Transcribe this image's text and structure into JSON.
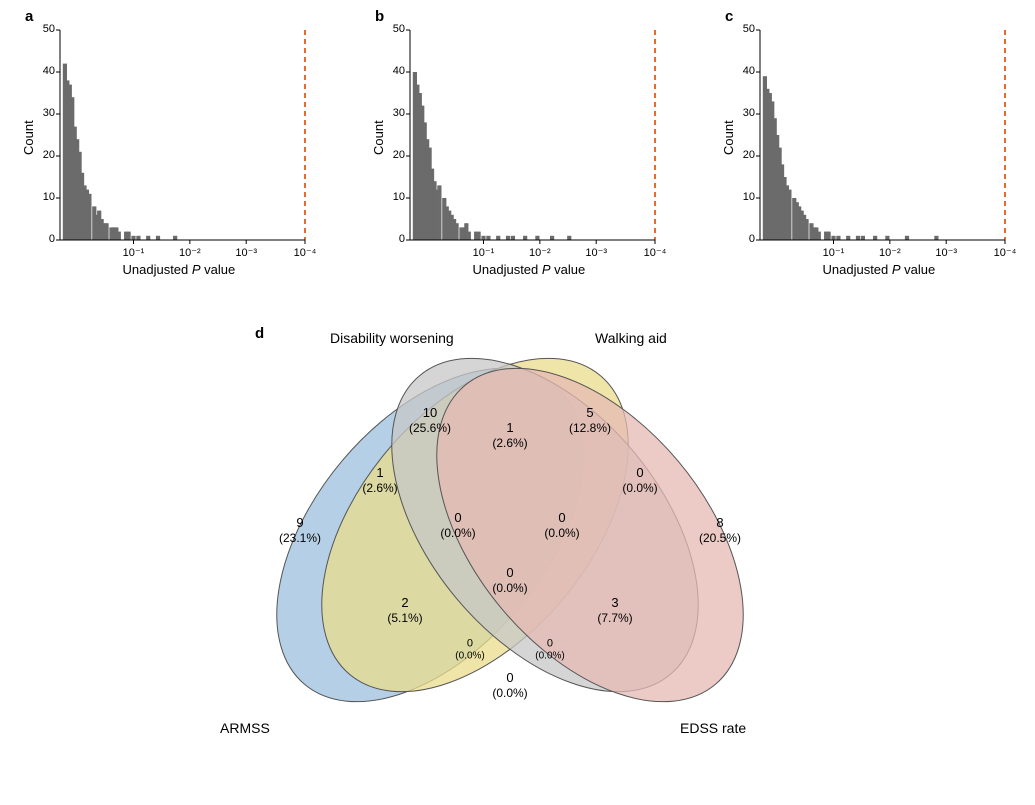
{
  "panels": {
    "a": {
      "label": "a"
    },
    "b": {
      "label": "b"
    },
    "c": {
      "label": "c"
    },
    "d": {
      "label": "d"
    }
  },
  "histograms": {
    "ylabel": "Count",
    "xlabel_prefix": "Unadjusted ",
    "xlabel_italic": "P",
    "xlabel_suffix": " value",
    "ylim": [
      0,
      50
    ],
    "yticks": [
      0,
      10,
      20,
      30,
      40,
      50
    ],
    "xticks": [
      "10⁻¹",
      "10⁻²",
      "10⁻³",
      "10⁻⁴"
    ],
    "xtick_positions": [
      0.3,
      0.53,
      0.76,
      1.0
    ],
    "bar_color": "#6b6b6b",
    "axis_color": "#000000",
    "threshold_color": "#e86a2e",
    "threshold_dash": "5,4",
    "threshold_x": 1.0,
    "background_color": "#ffffff",
    "a": {
      "bars": [
        42,
        38,
        37,
        34,
        27,
        24,
        21,
        16,
        13,
        12,
        11,
        8,
        6,
        7,
        5,
        4,
        4,
        3,
        3,
        3,
        2,
        2,
        2,
        1,
        1,
        1,
        1,
        0,
        1,
        0,
        0,
        0,
        0,
        0,
        0,
        0,
        0,
        0,
        0,
        0,
        0,
        0,
        0
      ],
      "bar_positions": [
        0.02,
        0.03,
        0.04,
        0.05,
        0.06,
        0.07,
        0.08,
        0.09,
        0.1,
        0.11,
        0.12,
        0.14,
        0.15,
        0.16,
        0.17,
        0.18,
        0.19,
        0.21,
        0.22,
        0.23,
        0.24,
        0.27,
        0.28,
        0.3,
        0.32,
        0.36,
        0.4,
        0.42,
        0.47,
        0.5,
        0.52,
        0.55,
        0.58,
        0.6,
        0.62,
        0.65,
        0.68,
        0.7,
        0.72,
        0.75,
        0.78,
        0.82,
        0.88
      ]
    },
    "b": {
      "bars": [
        40,
        37,
        35,
        32,
        28,
        24,
        22,
        17,
        14,
        12,
        13,
        10,
        8,
        7,
        6,
        5,
        4,
        3,
        3,
        4,
        2,
        2,
        2,
        1,
        1,
        1,
        1,
        1,
        1,
        0,
        1,
        0,
        1,
        0,
        0,
        1,
        0,
        0,
        0,
        0,
        0,
        0,
        0
      ],
      "bar_positions": [
        0.02,
        0.03,
        0.04,
        0.05,
        0.06,
        0.07,
        0.08,
        0.09,
        0.1,
        0.11,
        0.12,
        0.14,
        0.15,
        0.16,
        0.17,
        0.18,
        0.19,
        0.21,
        0.22,
        0.23,
        0.24,
        0.27,
        0.28,
        0.3,
        0.32,
        0.36,
        0.4,
        0.42,
        0.47,
        0.5,
        0.52,
        0.55,
        0.58,
        0.6,
        0.62,
        0.65,
        0.68,
        0.7,
        0.72,
        0.75,
        0.78,
        0.82,
        0.88
      ]
    },
    "c": {
      "bars": [
        39,
        36,
        35,
        33,
        29,
        25,
        22,
        18,
        15,
        13,
        12,
        10,
        9,
        8,
        7,
        6,
        5,
        4,
        3,
        3,
        2,
        2,
        2,
        1,
        1,
        1,
        1,
        1,
        1,
        0,
        1,
        0,
        0,
        1,
        0,
        0,
        0,
        0,
        1,
        0,
        0,
        0,
        0
      ],
      "bar_positions": [
        0.02,
        0.03,
        0.04,
        0.05,
        0.06,
        0.07,
        0.08,
        0.09,
        0.1,
        0.11,
        0.12,
        0.14,
        0.15,
        0.16,
        0.17,
        0.18,
        0.19,
        0.21,
        0.22,
        0.23,
        0.24,
        0.27,
        0.28,
        0.3,
        0.32,
        0.36,
        0.4,
        0.42,
        0.47,
        0.5,
        0.52,
        0.55,
        0.58,
        0.6,
        0.62,
        0.65,
        0.68,
        0.7,
        0.72,
        0.75,
        0.78,
        0.82,
        0.88
      ]
    }
  },
  "venn": {
    "titles": {
      "disability": "Disability worsening",
      "walking": "Walking aid",
      "armss": "ARMSS",
      "edss": "EDSS rate"
    },
    "colors": {
      "armss": "#9cc0de",
      "disability": "#e9dc8c",
      "walking": "#c7c7c7",
      "edss": "#e6b9b3",
      "stroke": "#555555"
    },
    "opacity": 0.75,
    "cells": {
      "armss_only": {
        "n": "9",
        "pct": "(23.1%)"
      },
      "disability_only": {
        "n": "10",
        "pct": "(25.6%)"
      },
      "walking_only": {
        "n": "5",
        "pct": "(12.8%)"
      },
      "edss_only": {
        "n": "8",
        "pct": "(20.5%)"
      },
      "armss_disability": {
        "n": "1",
        "pct": "(2.6%)"
      },
      "disability_walking": {
        "n": "1",
        "pct": "(2.6%)"
      },
      "walking_edss": {
        "n": "0",
        "pct": "(0.0%)"
      },
      "armss_walking": {
        "n": "2",
        "pct": "(5.1%)"
      },
      "disability_edss": {
        "n": "3",
        "pct": "(7.7%)"
      },
      "armss_edss": {
        "n": "0",
        "pct": "(0.0%)"
      },
      "armss_dis_walk": {
        "n": "0",
        "pct": "(0.0%)"
      },
      "dis_walk_edss": {
        "n": "0",
        "pct": "(0.0%)"
      },
      "armss_walk_edss": {
        "n": "0",
        "pct": "(0.0%)"
      },
      "armss_dis_edss": {
        "n": "0",
        "pct": "(0.0%)"
      },
      "all": {
        "n": "0",
        "pct": "(0.0%)"
      }
    }
  }
}
